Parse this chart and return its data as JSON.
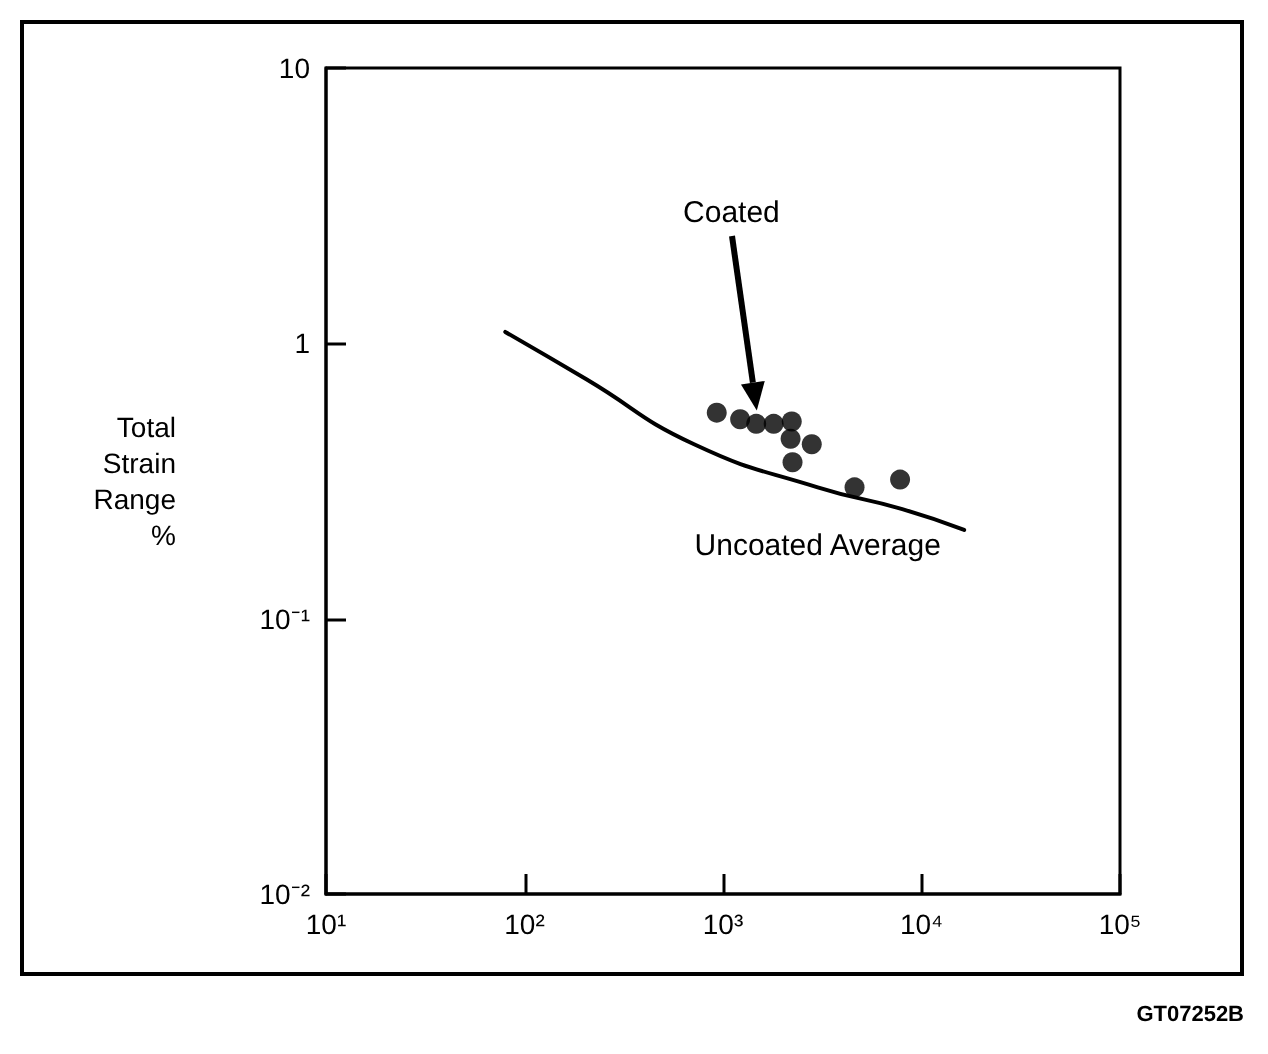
{
  "chart_data": {
    "type": "scatter",
    "ylabel": "Total Strain Range %",
    "log": "xy",
    "grid": false,
    "marker": "circle",
    "xlim": [
      10,
      100000
    ],
    "xticks": [
      {
        "value": 10,
        "label": "10¹"
      },
      {
        "value": 100,
        "label": "10²"
      },
      {
        "value": 1000,
        "label": "10³"
      },
      {
        "value": 10000,
        "label": "10⁴"
      },
      {
        "value": 100000,
        "label": "10⁵"
      }
    ],
    "ylim": [
      0.01,
      10
    ],
    "yticks": [
      {
        "value": 0.01,
        "label": "10⁻²"
      },
      {
        "value": 0.1,
        "label": "10⁻¹"
      },
      1,
      10
    ],
    "series": [
      {
        "color": "#000000",
        "x": [
          930,
          1220,
          1470,
          1800,
          2220,
          2190,
          2800,
          2240,
          4600,
          7800
        ],
        "values": [
          0.56,
          0.53,
          0.51,
          0.51,
          0.52,
          0.45,
          0.43,
          0.37,
          0.3,
          0.32
        ]
      },
      {
        "type": "line",
        "name": "Uncoated Average",
        "color": "#000000",
        "line_style": "solid",
        "marker": "none",
        "x": [
          80,
          205,
          715,
          3000,
          8000,
          16400
        ],
        "values": [
          1.1,
          0.74,
          0.43,
          0.3,
          0.25,
          0.21
        ]
      }
    ],
    "annotations": [
      "Coated",
      "GT07252B"
    ]
  }
}
